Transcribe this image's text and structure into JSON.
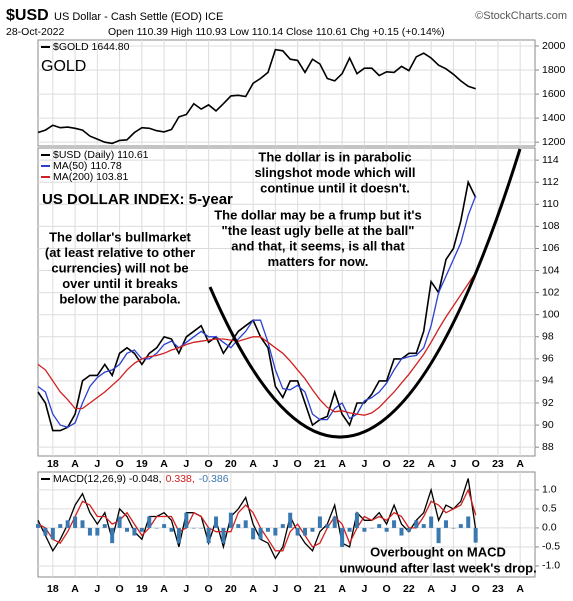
{
  "header": {
    "symbol": "$USD",
    "name": "US Dollar - Cash Settle (EOD) ICE",
    "date": "28-Oct-2022",
    "quote": "Open 110.39 High 110.93 Low 110.14 Close 110.61 Chg +0.15 (+0.14%)",
    "source": "©StockCharts.com"
  },
  "chart_data": [
    {
      "type": "line",
      "annotation": "GOLD",
      "annotation_color": "#f07830",
      "x": [
        "2017-11",
        "2017-12",
        "2018-01",
        "2018-02",
        "2018-03",
        "2018-04",
        "2018-05",
        "2018-06",
        "2018-07",
        "2018-08",
        "2018-09",
        "2018-10",
        "2018-11",
        "2018-12",
        "2019-01",
        "2019-02",
        "2019-03",
        "2019-04",
        "2019-05",
        "2019-06",
        "2019-07",
        "2019-08",
        "2019-09",
        "2019-10",
        "2019-11",
        "2019-12",
        "2020-01",
        "2020-02",
        "2020-03",
        "2020-04",
        "2020-05",
        "2020-06",
        "2020-07",
        "2020-08",
        "2020-09",
        "2020-10",
        "2020-11",
        "2020-12",
        "2021-01",
        "2021-02",
        "2021-03",
        "2021-04",
        "2021-05",
        "2021-06",
        "2021-07",
        "2021-08",
        "2021-09",
        "2021-10",
        "2021-11",
        "2021-12",
        "2022-01",
        "2022-02",
        "2022-03",
        "2022-04",
        "2022-05",
        "2022-06",
        "2022-07",
        "2022-08",
        "2022-09",
        "2022-10"
      ],
      "series": [
        {
          "name": "$GOLD 1644.80",
          "color": "#000000",
          "values": [
            1280,
            1300,
            1340,
            1320,
            1325,
            1315,
            1300,
            1250,
            1225,
            1200,
            1190,
            1215,
            1220,
            1280,
            1320,
            1315,
            1295,
            1285,
            1305,
            1410,
            1430,
            1520,
            1475,
            1510,
            1460,
            1520,
            1585,
            1590,
            1580,
            1690,
            1730,
            1780,
            1970,
            1960,
            1890,
            1880,
            1780,
            1890,
            1850,
            1730,
            1710,
            1770,
            1900,
            1770,
            1815,
            1815,
            1755,
            1785,
            1780,
            1830,
            1795,
            1910,
            1940,
            1900,
            1840,
            1810,
            1765,
            1710,
            1665,
            1644.8
          ]
        }
      ],
      "xlim": [
        "2017-11",
        "2023-06"
      ],
      "ylim": [
        1168,
        2050
      ],
      "yticks": [
        1200,
        1400,
        1600,
        1800,
        2000
      ],
      "grid": true
    },
    {
      "type": "line",
      "title": "US DOLLAR INDEX: 5-year",
      "title_color": "#1e7d1e",
      "x": [
        "2017-11",
        "2017-12",
        "2018-01",
        "2018-02",
        "2018-03",
        "2018-04",
        "2018-05",
        "2018-06",
        "2018-07",
        "2018-08",
        "2018-09",
        "2018-10",
        "2018-11",
        "2018-12",
        "2019-01",
        "2019-02",
        "2019-03",
        "2019-04",
        "2019-05",
        "2019-06",
        "2019-07",
        "2019-08",
        "2019-09",
        "2019-10",
        "2019-11",
        "2019-12",
        "2020-01",
        "2020-02",
        "2020-03",
        "2020-04",
        "2020-05",
        "2020-06",
        "2020-07",
        "2020-08",
        "2020-09",
        "2020-10",
        "2020-11",
        "2020-12",
        "2021-01",
        "2021-02",
        "2021-03",
        "2021-04",
        "2021-05",
        "2021-06",
        "2021-07",
        "2021-08",
        "2021-09",
        "2021-10",
        "2021-11",
        "2021-12",
        "2022-01",
        "2022-02",
        "2022-03",
        "2022-04",
        "2022-05",
        "2022-06",
        "2022-07",
        "2022-08",
        "2022-09",
        "2022-10"
      ],
      "series": [
        {
          "name": "$USD (Daily) 110.61",
          "color": "#000000",
          "values": [
            93,
            92,
            89.5,
            89.5,
            89.8,
            91,
            94,
            94.5,
            94.5,
            95.5,
            94.5,
            96.5,
            97,
            96.5,
            95.5,
            96.5,
            97,
            98,
            97.8,
            96.5,
            98,
            98.5,
            99,
            97.5,
            98,
            96.5,
            97.5,
            98.5,
            99,
            99.5,
            98,
            97,
            93.5,
            92.5,
            94,
            94,
            92,
            90,
            90.5,
            90.8,
            93,
            91,
            90,
            92,
            92,
            92.8,
            94,
            94,
            96,
            96,
            96.5,
            96.5,
            98.5,
            103,
            102,
            105,
            106,
            108.5,
            112,
            110.61
          ]
        },
        {
          "name": "MA(50) 110.78",
          "color": "#2a3fd0",
          "values": [
            93.5,
            93,
            91,
            90,
            89.8,
            90.2,
            92,
            93.5,
            94.3,
            94.8,
            95,
            95.5,
            96.5,
            96.8,
            96,
            96,
            96.5,
            97.3,
            97.6,
            97,
            97.5,
            98,
            98.5,
            98,
            98,
            97.5,
            97,
            97.8,
            98.5,
            99.5,
            99.5,
            97.5,
            95,
            93.3,
            93.2,
            93.6,
            93,
            91,
            90.5,
            90.5,
            91.5,
            92,
            90.6,
            91,
            92.2,
            92.5,
            93,
            93.8,
            95,
            96,
            96.2,
            96.3,
            97,
            99,
            102,
            103.5,
            105,
            106.5,
            109,
            110.78
          ]
        },
        {
          "name": "MA(200) 103.81",
          "color": "#d02020",
          "values": [
            95.5,
            95,
            94,
            93,
            92.3,
            91.5,
            91.5,
            92,
            92.5,
            93,
            93.6,
            94.2,
            95,
            95.6,
            96,
            96.2,
            96.3,
            96.5,
            96.8,
            97,
            97.3,
            97.5,
            97.6,
            97.7,
            97.8,
            97.8,
            97.7,
            97.6,
            97.8,
            98,
            98,
            97.5,
            97,
            96.5,
            95.8,
            95,
            94.2,
            93.2,
            92.3,
            91.6,
            91.2,
            91.3,
            91.1,
            91,
            90.9,
            91.1,
            91.6,
            92.3,
            93,
            93.8,
            94.6,
            95.5,
            96.4,
            97.5,
            98.7,
            99.8,
            100.8,
            101.8,
            102.8,
            103.81
          ]
        }
      ],
      "annotations": [
        {
          "lines": [
            "The dollar is in parabolic",
            "slingshot mode which will",
            "continue until it doesn't."
          ],
          "color": "#8b1a1a"
        },
        {
          "lines": [
            "The dollar may be a frump but it's",
            "\"the least ugly belle at the ball\"",
            "and that, it seems, is all that",
            "matters for now."
          ],
          "color": "#8b1a1a"
        },
        {
          "lines": [
            "The dollar's bullmarket",
            "(at least relative to other",
            "currencies) will not be",
            "over until it breaks",
            "below the parabola."
          ],
          "color": "#8b1a1a"
        }
      ],
      "xlim": [
        "2017-11",
        "2023-06"
      ],
      "ylim": [
        87.2,
        115.1
      ],
      "yticks": [
        88,
        90,
        92,
        94,
        96,
        98,
        100,
        102,
        104,
        106,
        108,
        110,
        112,
        114
      ],
      "xticks": [
        {
          "value": "2018-01",
          "label": "18"
        },
        {
          "value": "2018-04",
          "label": "A"
        },
        {
          "value": "2018-07",
          "label": "J"
        },
        {
          "value": "2018-10",
          "label": "O"
        },
        {
          "value": "2019-01",
          "label": "19"
        },
        {
          "value": "2019-04",
          "label": "A"
        },
        {
          "value": "2019-07",
          "label": "J"
        },
        {
          "value": "2019-10",
          "label": "O"
        },
        {
          "value": "2020-01",
          "label": "20"
        },
        {
          "value": "2020-04",
          "label": "A"
        },
        {
          "value": "2020-07",
          "label": "J"
        },
        {
          "value": "2020-10",
          "label": "O"
        },
        {
          "value": "2021-01",
          "label": "21"
        },
        {
          "value": "2021-04",
          "label": "A"
        },
        {
          "value": "2021-07",
          "label": "J"
        },
        {
          "value": "2021-10",
          "label": "O"
        },
        {
          "value": "2022-01",
          "label": "22"
        },
        {
          "value": "2022-04",
          "label": "A"
        },
        {
          "value": "2022-07",
          "label": "J"
        },
        {
          "value": "2022-10",
          "label": "O"
        },
        {
          "value": "2023-01",
          "label": "23"
        },
        {
          "value": "2023-04",
          "label": "A"
        }
      ],
      "grid": true
    },
    {
      "type": "line",
      "x": [
        "2017-11",
        "2017-12",
        "2018-01",
        "2018-02",
        "2018-03",
        "2018-04",
        "2018-05",
        "2018-06",
        "2018-07",
        "2018-08",
        "2018-09",
        "2018-10",
        "2018-11",
        "2018-12",
        "2019-01",
        "2019-02",
        "2019-03",
        "2019-04",
        "2019-05",
        "2019-06",
        "2019-07",
        "2019-08",
        "2019-09",
        "2019-10",
        "2019-11",
        "2019-12",
        "2020-01",
        "2020-02",
        "2020-03",
        "2020-04",
        "2020-05",
        "2020-06",
        "2020-07",
        "2020-08",
        "2020-09",
        "2020-10",
        "2020-11",
        "2020-12",
        "2021-01",
        "2021-02",
        "2021-03",
        "2021-04",
        "2021-05",
        "2021-06",
        "2021-07",
        "2021-08",
        "2021-09",
        "2021-10",
        "2021-11",
        "2021-12",
        "2022-01",
        "2022-02",
        "2022-03",
        "2022-04",
        "2022-05",
        "2022-06",
        "2022-07",
        "2022-08",
        "2022-09",
        "2022-10"
      ],
      "series": [
        {
          "name": "MACD(12,26,9) -0.048,",
          "color": "#000000",
          "type": "line",
          "values": [
            0.2,
            -0.2,
            -0.6,
            -0.3,
            0.1,
            0.6,
            0.9,
            0.4,
            0.1,
            0.4,
            -0.3,
            0.5,
            0.3,
            -0.1,
            -0.3,
            0.3,
            0.3,
            0.4,
            0.2,
            -0.5,
            0.4,
            0.4,
            0.3,
            -0.4,
            0.2,
            -0.5,
            0.3,
            0.5,
            0.8,
            0.1,
            -0.3,
            -0.4,
            -0.8,
            -0.5,
            0.3,
            -0.1,
            -0.4,
            -0.6,
            -0.1,
            0.1,
            0.6,
            -0.4,
            -0.5,
            0.4,
            0.2,
            0.2,
            0.4,
            0.1,
            0.6,
            0.1,
            -0.1,
            0.2,
            0.4,
            1.0,
            0.2,
            0.6,
            0.5,
            0.7,
            1.3,
            -0.048
          ]
        },
        {
          "name": "0.338,",
          "color": "#d02020",
          "type": "line",
          "values": [
            0.1,
            0.0,
            -0.3,
            -0.4,
            -0.1,
            0.3,
            0.7,
            0.6,
            0.3,
            0.3,
            0.1,
            0.2,
            0.4,
            0.1,
            -0.2,
            0.0,
            0.3,
            0.3,
            0.3,
            -0.1,
            0.0,
            0.4,
            0.3,
            0.0,
            -0.1,
            -0.1,
            -0.1,
            0.4,
            0.6,
            0.4,
            0.0,
            -0.3,
            -0.6,
            -0.6,
            -0.1,
            0.1,
            -0.2,
            -0.5,
            -0.4,
            0.0,
            0.3,
            0.1,
            -0.4,
            0.0,
            0.3,
            0.2,
            0.3,
            0.2,
            0.4,
            0.3,
            0.0,
            0.0,
            0.3,
            0.7,
            0.6,
            0.4,
            0.5,
            0.6,
            1.0,
            0.338
          ]
        },
        {
          "name": "-0.386",
          "color": "#3a78b0",
          "type": "bar",
          "values": [
            0.1,
            -0.2,
            -0.3,
            0.1,
            0.2,
            0.3,
            0.2,
            -0.2,
            -0.2,
            0.1,
            -0.4,
            0.3,
            -0.1,
            -0.2,
            -0.1,
            0.3,
            0,
            0.1,
            -0.1,
            -0.4,
            0.4,
            0,
            0,
            -0.4,
            0.3,
            -0.4,
            0.4,
            0.1,
            0.2,
            -0.3,
            -0.3,
            -0.1,
            -0.2,
            0.1,
            0.4,
            -0.2,
            -0.2,
            -0.1,
            0.3,
            0.1,
            0.3,
            -0.5,
            -0.1,
            0.4,
            -0.1,
            0,
            0.1,
            -0.1,
            0.2,
            -0.2,
            -0.1,
            0.2,
            0.1,
            0.3,
            -0.4,
            0.2,
            0,
            0.1,
            0.3,
            -0.386
          ]
        }
      ],
      "annotation": {
        "lines": [
          "Overbought on MACD",
          "unwound after last week's drop."
        ],
        "color": "#8b1a1a"
      },
      "xlim": [
        "2017-11",
        "2023-06"
      ],
      "ylim": [
        -1.29,
        1.47
      ],
      "yticks": [
        {
          "value": -1,
          "label": "-1.0"
        },
        -0.5,
        {
          "value": 0,
          "label": "0.0"
        },
        0.5,
        {
          "value": 1,
          "label": "1.0"
        }
      ],
      "xticks": [
        {
          "value": "2018-01",
          "label": "18"
        },
        {
          "value": "2018-04",
          "label": "A"
        },
        {
          "value": "2018-07",
          "label": "J"
        },
        {
          "value": "2018-10",
          "label": "O"
        },
        {
          "value": "2019-01",
          "label": "19"
        },
        {
          "value": "2019-04",
          "label": "A"
        },
        {
          "value": "2019-07",
          "label": "J"
        },
        {
          "value": "2019-10",
          "label": "O"
        },
        {
          "value": "2020-01",
          "label": "20"
        },
        {
          "value": "2020-04",
          "label": "A"
        },
        {
          "value": "2020-07",
          "label": "J"
        },
        {
          "value": "2020-10",
          "label": "O"
        },
        {
          "value": "2021-01",
          "label": "21"
        },
        {
          "value": "2021-04",
          "label": "A"
        },
        {
          "value": "2021-07",
          "label": "J"
        },
        {
          "value": "2021-10",
          "label": "O"
        },
        {
          "value": "2022-01",
          "label": "22"
        },
        {
          "value": "2022-04",
          "label": "A"
        },
        {
          "value": "2022-07",
          "label": "J"
        },
        {
          "value": "2022-10",
          "label": "O"
        },
        {
          "value": "2023-01",
          "label": "23"
        },
        {
          "value": "2023-04",
          "label": "A"
        }
      ],
      "grid": true
    }
  ]
}
